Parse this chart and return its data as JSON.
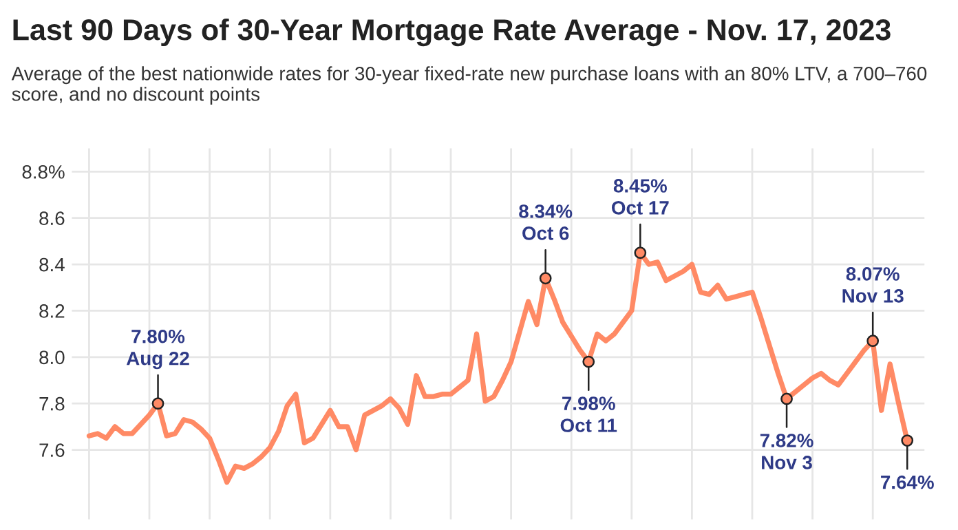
{
  "chart_data": {
    "type": "line",
    "title": "Last 90 Days of 30-Year Mortgage Rate Average - Nov. 17, 2023",
    "subtitle": "Average of the best nationwide rates for 30-year fixed-rate new purchase loans with an 80% LTV, a 700–760 score, and no discount points",
    "categories": [
      null,
      null,
      null,
      null,
      null,
      null,
      null,
      null,
      null,
      null,
      null,
      null,
      null,
      null,
      null,
      null,
      null,
      null,
      null,
      null,
      null,
      null,
      null,
      null,
      null,
      null,
      null,
      null,
      null,
      null,
      null,
      null,
      null,
      null,
      null,
      null,
      null,
      null,
      null,
      null,
      null,
      null,
      null,
      null,
      null,
      null,
      null,
      null,
      null,
      null,
      null,
      null,
      null,
      null,
      null,
      null,
      null,
      null,
      null,
      null,
      null,
      null,
      null,
      null,
      null,
      null,
      null,
      null,
      null,
      null,
      null,
      null,
      null,
      null,
      null,
      null,
      null,
      null,
      null,
      null,
      null,
      null,
      null,
      null,
      null,
      null,
      null,
      null,
      null,
      null,
      null,
      null,
      null,
      null,
      null,
      null
    ],
    "series": [
      {
        "color": "#ff8a65",
        "values": [
          7.66,
          7.67,
          7.65,
          7.7,
          7.67,
          7.67,
          7.71,
          7.75,
          7.8,
          7.66,
          7.67,
          7.73,
          7.72,
          7.69,
          7.65,
          7.56,
          7.46,
          7.53,
          7.52,
          7.54,
          7.57,
          7.61,
          7.68,
          7.79,
          7.84,
          7.63,
          7.65,
          7.71,
          7.77,
          7.7,
          7.7,
          7.6,
          7.75,
          7.77,
          7.79,
          7.82,
          7.78,
          7.71,
          7.92,
          7.83,
          7.83,
          7.84,
          7.84,
          7.87,
          7.9,
          8.1,
          7.81,
          7.83,
          7.9,
          7.98,
          8.11,
          8.24,
          8.14,
          8.34,
          8.25,
          8.15,
          8.09,
          8.03,
          7.98,
          8.1,
          8.07,
          8.1,
          8.15,
          8.2,
          8.45,
          8.4,
          8.41,
          8.33,
          8.35,
          8.37,
          8.4,
          8.28,
          8.27,
          8.31,
          8.25,
          8.26,
          8.27,
          8.28,
          8.17,
          8.05,
          7.93,
          7.82,
          7.85,
          7.88,
          7.91,
          7.93,
          7.9,
          7.88,
          7.93,
          7.98,
          8.03,
          8.07,
          7.77,
          7.97,
          7.8,
          7.64
        ],
        "value_labels": [
          null,
          null,
          null,
          null,
          null,
          null,
          null,
          null,
          "7.80%\nAug 22",
          null,
          null,
          null,
          null,
          null,
          null,
          null,
          null,
          null,
          null,
          null,
          null,
          null,
          null,
          null,
          null,
          null,
          null,
          null,
          null,
          null,
          null,
          null,
          null,
          null,
          null,
          null,
          null,
          null,
          null,
          null,
          null,
          null,
          null,
          null,
          null,
          null,
          null,
          null,
          null,
          null,
          null,
          null,
          null,
          "8.34%\nOct 6",
          null,
          null,
          null,
          null,
          "7.98%\nOct 11",
          null,
          null,
          null,
          null,
          null,
          "8.45%\nOct 17",
          null,
          null,
          null,
          null,
          null,
          null,
          null,
          null,
          null,
          null,
          null,
          null,
          null,
          null,
          null,
          null,
          "7.82%\nNov 3",
          null,
          null,
          null,
          null,
          null,
          null,
          null,
          null,
          null,
          "8.07%\nNov 13",
          null,
          null,
          null,
          "7.64%"
        ]
      }
    ],
    "ylim": [
      7.3,
      8.9
    ],
    "yticks": [
      7.6,
      7.8,
      {
        "value": 8.0,
        "label": "8.0"
      },
      8.2,
      8.4,
      8.6,
      {
        "value": 8.8,
        "label": "8.8%"
      }
    ],
    "grid": true,
    "line_style": "solid",
    "marker": "none"
  }
}
